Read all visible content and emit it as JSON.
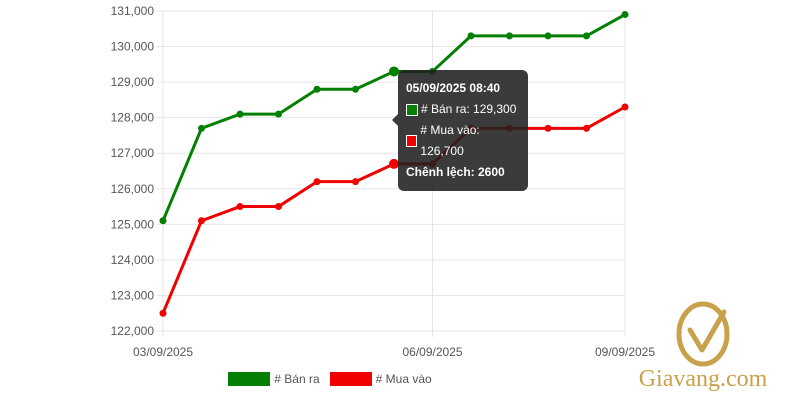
{
  "chart_data": {
    "type": "line",
    "x": [
      "03/09/2025",
      "",
      "",
      "",
      "",
      "",
      "",
      "06/09/2025",
      "",
      "",
      "",
      "",
      "09/09/2025"
    ],
    "x_tick_labels": [
      "03/09/2025",
      "06/09/2025",
      "09/09/2025"
    ],
    "series": [
      {
        "name": "# Bán ra",
        "color": "#038003",
        "values": [
          125100,
          127700,
          128100,
          128100,
          128800,
          128800,
          129300,
          129300,
          130300,
          130300,
          130300,
          130300,
          130900
        ]
      },
      {
        "name": "# Mua vào",
        "color": "#f00000",
        "values": [
          122500,
          125100,
          125500,
          125500,
          126200,
          126200,
          126700,
          126700,
          127700,
          127700,
          127700,
          127700,
          128300
        ]
      }
    ],
    "y_ticks": [
      "122,000",
      "123,000",
      "124,000",
      "125,000",
      "126,000",
      "127,000",
      "128,000",
      "129,000",
      "130,000",
      "131,000"
    ],
    "ylim": [
      122000,
      131000
    ],
    "grid": true,
    "legend_position": "bottom"
  },
  "tooltip": {
    "title": "05/09/2025 08:40",
    "rows": [
      {
        "label": "# Bán ra: 129,300",
        "color": "#038003"
      },
      {
        "label": "# Mua vào: 126,700",
        "color": "#f00000"
      }
    ],
    "footer": "Chênh lệch: 2600"
  },
  "logo": {
    "text": "Giavang.com",
    "color": "#c9a14a"
  }
}
